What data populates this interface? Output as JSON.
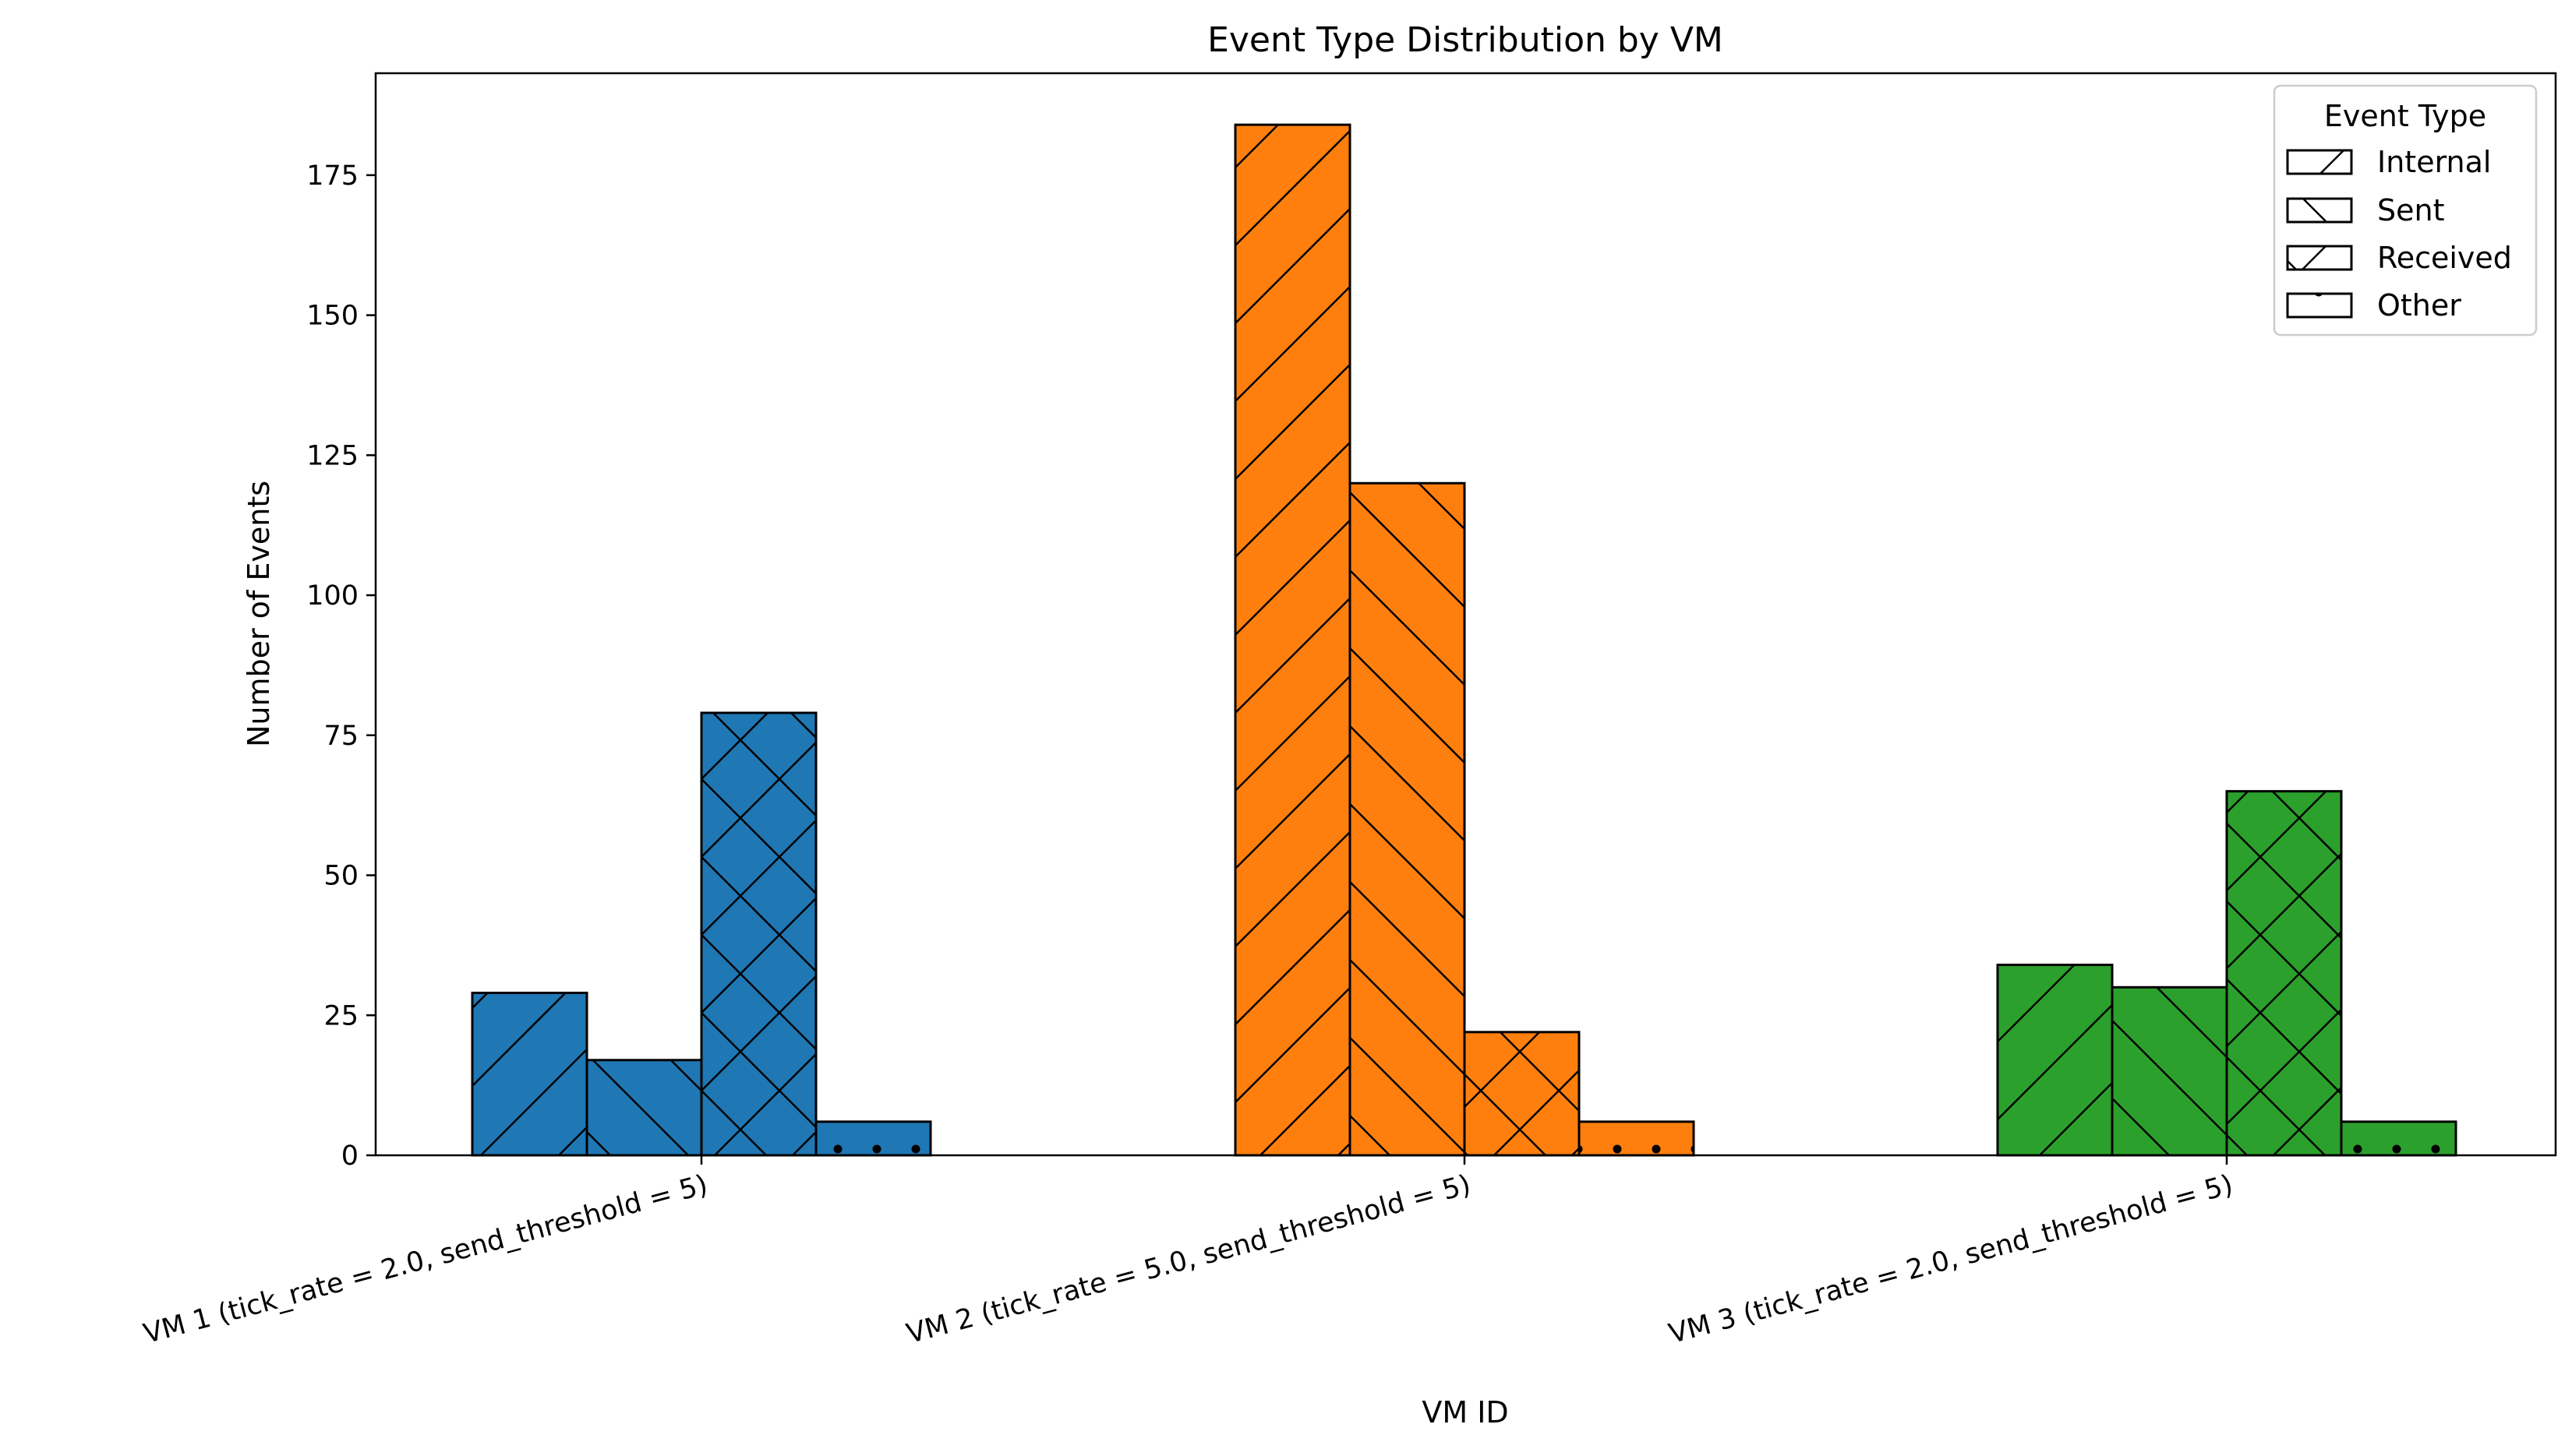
{
  "chart_data": {
    "type": "bar",
    "title": "Event Type Distribution by VM",
    "xlabel": "VM ID",
    "ylabel": "Number of Events",
    "categories": [
      "VM 1 (tick_rate = 2.0, send_threshold = 5)",
      "VM 2 (tick_rate = 5.0, send_threshold = 5)",
      "VM 3 (tick_rate = 2.0, send_threshold = 5)"
    ],
    "category_colors": [
      "#1f77b4",
      "#ff7f0e",
      "#2ca02c"
    ],
    "series": [
      {
        "name": "Internal",
        "hatch": "forward-diagonal",
        "values": [
          29,
          184,
          34
        ]
      },
      {
        "name": "Sent",
        "hatch": "back-diagonal",
        "values": [
          17,
          120,
          30
        ]
      },
      {
        "name": "Received",
        "hatch": "crosshatch",
        "values": [
          79,
          22,
          65
        ]
      },
      {
        "name": "Other",
        "hatch": "dots",
        "values": [
          6,
          6,
          6
        ]
      }
    ],
    "ylim": [
      0,
      193.2
    ],
    "yticks": [
      0,
      25,
      50,
      75,
      100,
      125,
      150,
      175
    ],
    "grid": false,
    "legend": {
      "title": "Event Type",
      "position": "top-right"
    }
  }
}
